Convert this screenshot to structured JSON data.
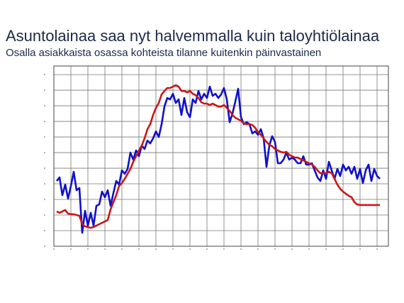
{
  "chart_data": {
    "type": "line",
    "title": "Asuntolainaa saa nyt halvemmalla kuin taloyhtiölainaa",
    "subtitle": "Osalla asiakkaista osassa kohteista tilanne kuitenkin päinvastainen",
    "x": [
      1,
      2,
      3,
      4,
      5,
      6,
      7,
      8,
      9,
      10,
      11,
      12,
      13,
      14,
      15,
      16,
      17,
      18,
      19,
      20,
      21,
      22,
      23,
      24,
      25,
      26,
      27,
      28,
      29,
      30,
      31,
      32,
      33,
      34,
      35,
      36,
      37,
      38,
      39,
      40,
      41,
      42,
      43,
      44,
      45,
      46,
      47,
      48,
      49,
      50,
      51,
      52,
      53,
      54,
      55,
      56,
      57,
      58,
      59,
      60,
      61,
      62,
      63,
      64,
      65,
      66,
      67,
      68,
      69,
      70,
      71,
      72,
      73,
      74,
      75,
      76,
      77,
      78,
      79,
      80,
      81,
      82,
      83,
      84,
      85,
      86,
      87,
      88,
      89,
      90,
      91,
      92,
      93,
      94,
      95,
      96,
      97,
      98,
      99,
      100,
      101,
      102,
      103,
      104,
      105,
      106,
      107,
      108,
      109,
      110,
      111,
      112,
      113,
      114,
      115
    ],
    "xlim": [
      0,
      118
    ],
    "xticks": [
      0,
      6,
      12,
      18,
      24,
      30,
      36,
      42,
      48,
      54,
      60,
      66,
      72,
      78,
      84,
      90,
      96,
      102,
      108,
      114
    ],
    "ylim": [
      0,
      11.55
    ],
    "yticks": [
      0,
      1,
      2,
      3,
      4,
      5,
      6,
      7,
      8,
      9,
      10,
      11
    ],
    "grid": true,
    "series": [
      {
        "color": "#1010c8",
        "values": [
          4.18,
          4.41,
          3.27,
          3.95,
          3.05,
          3.86,
          4.77,
          3.59,
          3.73,
          0.86,
          2.27,
          1.32,
          2.14,
          1.32,
          2.59,
          2.68,
          3.5,
          3.14,
          3.59,
          2.59,
          3.41,
          4.18,
          3.95,
          4.86,
          4.64,
          4.95,
          6.0,
          5.55,
          6.14,
          5.77,
          6.45,
          6.23,
          6.77,
          6.59,
          6.91,
          7.36,
          7.0,
          7.82,
          8.95,
          9.5,
          9.41,
          9.77,
          9.18,
          9.41,
          8.41,
          9.5,
          8.59,
          8.27,
          9.41,
          9.18,
          9.95,
          9.41,
          9.77,
          9.5,
          10.23,
          9.64,
          9.77,
          9.5,
          9.73,
          10.14,
          9.41,
          7.95,
          8.5,
          9.27,
          10.09,
          8.27,
          7.82,
          7.95,
          7.82,
          7.23,
          7.36,
          7.14,
          7.5,
          6.91,
          5.09,
          6.45,
          7.05,
          6.68,
          5.32,
          5.32,
          5.55,
          6.0,
          5.55,
          5.68,
          5.55,
          5.32,
          5.32,
          5.77,
          5.23,
          5.23,
          5.32,
          4.86,
          4.41,
          4.18,
          4.86,
          4.32,
          5.41,
          4.86,
          4.32,
          4.95,
          4.5,
          5.23,
          4.86,
          5.09,
          4.64,
          5.09,
          4.32,
          4.95,
          4.05,
          4.86,
          5.23,
          4.18,
          4.95,
          4.5,
          4.32
        ]
      },
      {
        "color": "#c81818",
        "values": [
          2.23,
          2.14,
          2.23,
          2.32,
          2.09,
          2.05,
          2.05,
          2.0,
          1.95,
          1.41,
          1.27,
          1.23,
          1.18,
          1.23,
          1.32,
          1.41,
          1.5,
          1.59,
          1.68,
          2.36,
          2.82,
          3.27,
          3.86,
          4.05,
          4.32,
          4.64,
          4.95,
          5.41,
          5.77,
          6.14,
          6.45,
          6.91,
          7.5,
          7.82,
          8.41,
          8.86,
          9.18,
          9.73,
          9.95,
          10.14,
          10.14,
          10.23,
          10.32,
          10.23,
          9.95,
          9.95,
          9.86,
          9.95,
          9.77,
          9.68,
          9.5,
          9.23,
          9.14,
          9.14,
          9.05,
          9.14,
          9.05,
          8.95,
          8.95,
          9.05,
          8.86,
          8.68,
          8.41,
          8.23,
          8.14,
          8.05,
          7.86,
          7.82,
          7.82,
          7.77,
          7.59,
          7.32,
          7.14,
          6.91,
          6.68,
          6.5,
          6.41,
          6.23,
          6.14,
          6.05,
          6.0,
          6.05,
          5.86,
          5.77,
          5.68,
          5.68,
          5.59,
          5.5,
          5.41,
          5.32,
          5.23,
          5.09,
          4.86,
          4.68,
          4.68,
          4.68,
          4.77,
          4.68,
          4.32,
          3.95,
          3.68,
          3.5,
          3.36,
          3.23,
          3.14,
          2.82,
          2.68,
          2.64,
          2.64,
          2.64,
          2.64,
          2.64,
          2.64,
          2.64,
          2.64
        ]
      }
    ]
  }
}
